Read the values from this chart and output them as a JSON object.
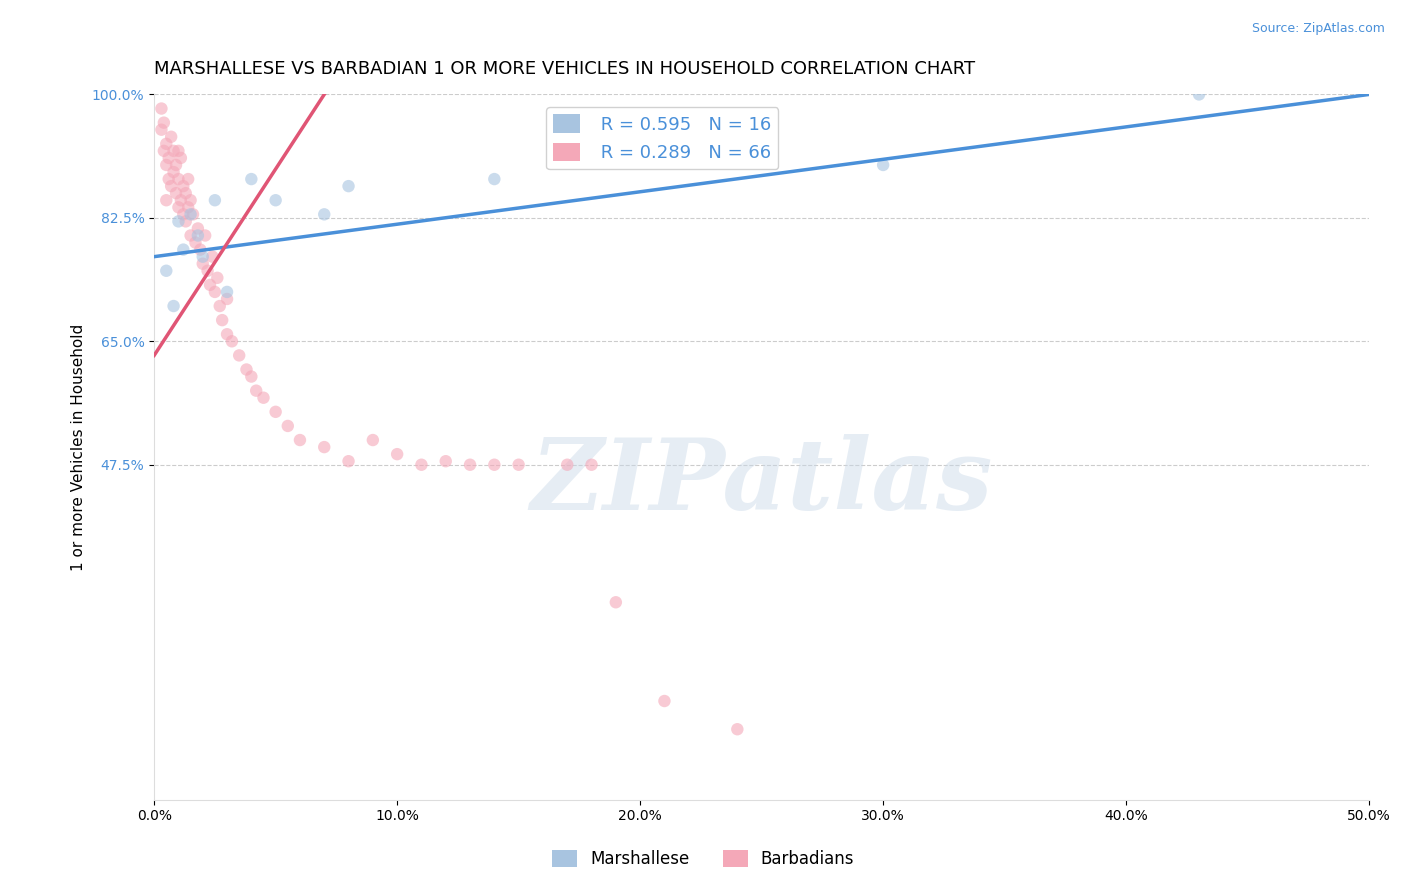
{
  "title": "MARSHALLESE VS BARBADIAN 1 OR MORE VEHICLES IN HOUSEHOLD CORRELATION CHART",
  "source_text": "Source: ZipAtlas.com",
  "ylabel_text": "1 or more Vehicles in Household",
  "xlim": [
    0.0,
    50.0
  ],
  "ylim": [
    0.0,
    100.0
  ],
  "xtick_labels": [
    "0.0%",
    "10.0%",
    "20.0%",
    "30.0%",
    "40.0%",
    "50.0%"
  ],
  "xtick_values": [
    0.0,
    10.0,
    20.0,
    30.0,
    40.0,
    50.0
  ],
  "ytick_labels": [
    "47.5%",
    "65.0%",
    "82.5%",
    "100.0%"
  ],
  "ytick_values": [
    47.5,
    65.0,
    82.5,
    100.0
  ],
  "grid_color": "#cccccc",
  "background_color": "#ffffff",
  "legend_R_marshallese": "R = 0.595",
  "legend_N_marshallese": "N = 16",
  "legend_R_barbadian": "R = 0.289",
  "legend_N_barbadian": "N = 66",
  "marshallese_color": "#a8c4e0",
  "barbadian_color": "#f4a8b8",
  "marshallese_line_color": "#4a90d9",
  "barbadian_line_color": "#e05575",
  "marker_size": 80,
  "marker_alpha": 0.6,
  "watermark_text": "ZIPatlas",
  "watermark_color": "#c8d8e8",
  "watermark_fontsize": 72,
  "title_fontsize": 13,
  "axis_label_fontsize": 11,
  "tick_fontsize": 10,
  "legend_fontsize": 13,
  "marshallese_x": [
    0.5,
    0.8,
    1.0,
    1.2,
    1.5,
    1.8,
    2.0,
    2.5,
    3.0,
    4.0,
    5.0,
    7.0,
    8.0,
    14.0,
    30.0,
    43.0
  ],
  "marshallese_y": [
    75.0,
    70.0,
    82.0,
    78.0,
    83.0,
    80.0,
    77.0,
    85.0,
    72.0,
    88.0,
    85.0,
    83.0,
    87.0,
    88.0,
    90.0,
    100.0
  ],
  "barbadian_x": [
    0.3,
    0.3,
    0.4,
    0.4,
    0.5,
    0.5,
    0.5,
    0.6,
    0.6,
    0.7,
    0.7,
    0.8,
    0.8,
    0.9,
    0.9,
    1.0,
    1.0,
    1.0,
    1.1,
    1.1,
    1.2,
    1.2,
    1.3,
    1.3,
    1.4,
    1.4,
    1.5,
    1.5,
    1.6,
    1.7,
    1.8,
    1.9,
    2.0,
    2.1,
    2.2,
    2.3,
    2.4,
    2.5,
    2.6,
    2.7,
    2.8,
    3.0,
    3.0,
    3.2,
    3.5,
    3.8,
    4.0,
    4.2,
    4.5,
    5.0,
    5.5,
    6.0,
    7.0,
    8.0,
    9.0,
    10.0,
    11.0,
    12.0,
    13.0,
    14.0,
    15.0,
    17.0,
    18.0,
    19.0,
    21.0,
    24.0
  ],
  "barbadian_y": [
    95.0,
    98.0,
    92.0,
    96.0,
    90.0,
    93.0,
    85.0,
    91.0,
    88.0,
    94.0,
    87.0,
    89.0,
    92.0,
    86.0,
    90.0,
    84.0,
    88.0,
    92.0,
    85.0,
    91.0,
    83.0,
    87.0,
    82.0,
    86.0,
    84.0,
    88.0,
    80.0,
    85.0,
    83.0,
    79.0,
    81.0,
    78.0,
    76.0,
    80.0,
    75.0,
    73.0,
    77.0,
    72.0,
    74.0,
    70.0,
    68.0,
    66.0,
    71.0,
    65.0,
    63.0,
    61.0,
    60.0,
    58.0,
    57.0,
    55.0,
    53.0,
    51.0,
    50.0,
    48.0,
    51.0,
    49.0,
    47.5,
    48.0,
    47.5,
    47.5,
    47.5,
    47.5,
    47.5,
    28.0,
    14.0,
    10.0
  ]
}
